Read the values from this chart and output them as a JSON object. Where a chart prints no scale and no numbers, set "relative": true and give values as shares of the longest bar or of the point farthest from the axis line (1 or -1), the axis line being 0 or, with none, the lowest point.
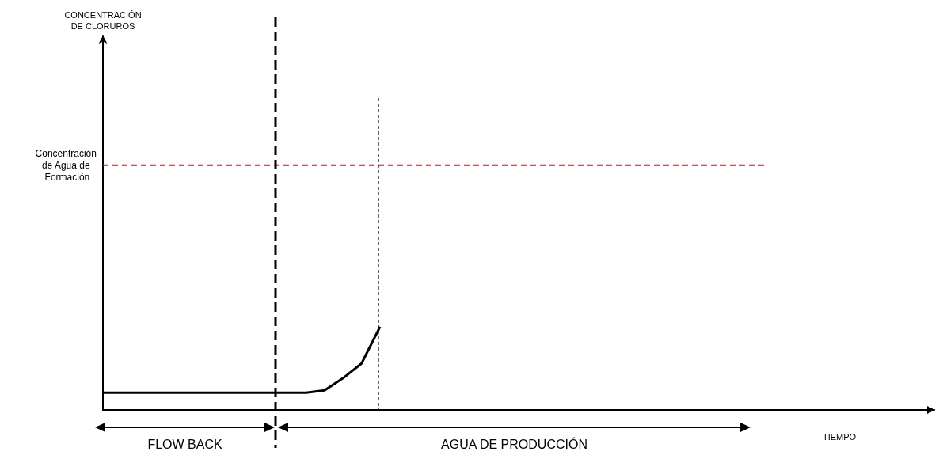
{
  "chart_data": {
    "type": "line",
    "relative": true,
    "xlabel": "TIEMPO",
    "line_style": "solid",
    "categories": [
      null,
      null,
      null,
      null,
      null,
      null,
      null,
      null,
      null,
      null,
      null,
      null,
      null,
      null,
      null,
      null,
      null,
      null,
      null,
      null,
      null,
      null,
      null,
      null,
      null,
      null,
      null,
      null,
      null,
      null,
      null,
      null,
      null,
      null,
      null,
      null,
      null,
      null,
      null,
      null,
      null,
      null,
      null,
      null,
      null,
      null
    ],
    "series": [
      {
        "color": "#000000",
        "values": [
          0.07,
          0.07,
          0.07,
          0.07,
          0.07,
          0.07,
          0.07,
          0.07,
          0.07,
          0.07,
          0.07,
          0.07,
          0.08,
          0.13,
          0.19,
          0.34,
          null,
          null,
          null,
          null,
          null,
          null,
          null,
          null,
          null,
          null,
          null,
          null,
          null,
          null,
          null,
          null,
          null,
          null,
          null,
          null,
          null,
          null,
          null,
          null,
          null,
          null,
          null,
          null,
          null,
          null
        ]
      },
      {
        "name": "Concentración de Agua de Formación",
        "color": "#ff0000",
        "line_style": "dashed",
        "values": [
          1,
          1,
          1,
          1,
          1,
          1,
          1,
          1,
          1,
          1,
          1,
          1,
          1,
          1,
          1,
          1,
          1,
          1,
          1,
          1,
          1,
          1,
          1,
          1,
          1,
          1,
          1,
          1,
          1,
          1,
          1,
          1,
          1,
          1,
          1,
          1,
          1,
          null,
          null,
          null,
          null,
          null,
          null,
          null,
          null,
          null
        ]
      }
    ],
    "annotations": [
      "CONCENTRACIÓN DE CLORUROS",
      "FLOW BACK",
      "AGUA DE PRODUCCIÓN"
    ]
  }
}
